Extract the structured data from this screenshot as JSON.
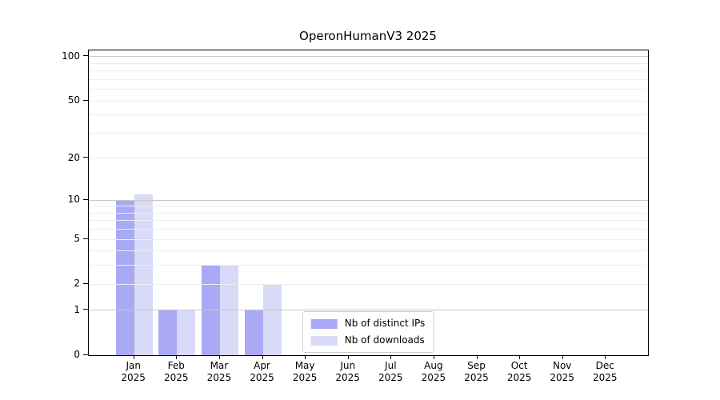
{
  "chart_data": {
    "type": "bar",
    "title": "OperonHumanV3 2025",
    "categories": [
      "Jan",
      "Feb",
      "Mar",
      "Apr",
      "May",
      "Jun",
      "Jul",
      "Aug",
      "Sep",
      "Oct",
      "Nov",
      "Dec"
    ],
    "x_tick_second_line": "2025",
    "series": [
      {
        "name": "Nb of distinct IPs",
        "color": "#a9a9f6",
        "values": [
          10,
          1,
          3,
          1,
          0,
          0,
          0,
          0,
          0,
          0,
          0,
          0
        ]
      },
      {
        "name": "Nb of downloads",
        "color": "#d9d9f8",
        "values": [
          11,
          1,
          3,
          2,
          0,
          0,
          0,
          0,
          0,
          0,
          0,
          0
        ]
      }
    ],
    "yscale": "log1p",
    "ylim": [
      0,
      110.5
    ],
    "y_ticks": [
      0,
      1,
      2,
      5,
      10,
      20,
      50,
      100
    ],
    "y_major_gridlines": [
      1,
      10,
      100
    ],
    "y_minor_gridlines": [
      2,
      3,
      4,
      5,
      6,
      7,
      8,
      9,
      20,
      30,
      40,
      50,
      60,
      70,
      80,
      90
    ],
    "grid": "horizontal",
    "legend_position": "lower center",
    "colors": {
      "major_grid": "#c8c8c8",
      "minor_grid": "#eeeeee",
      "axis": "#000000",
      "background": "#ffffff"
    }
  }
}
